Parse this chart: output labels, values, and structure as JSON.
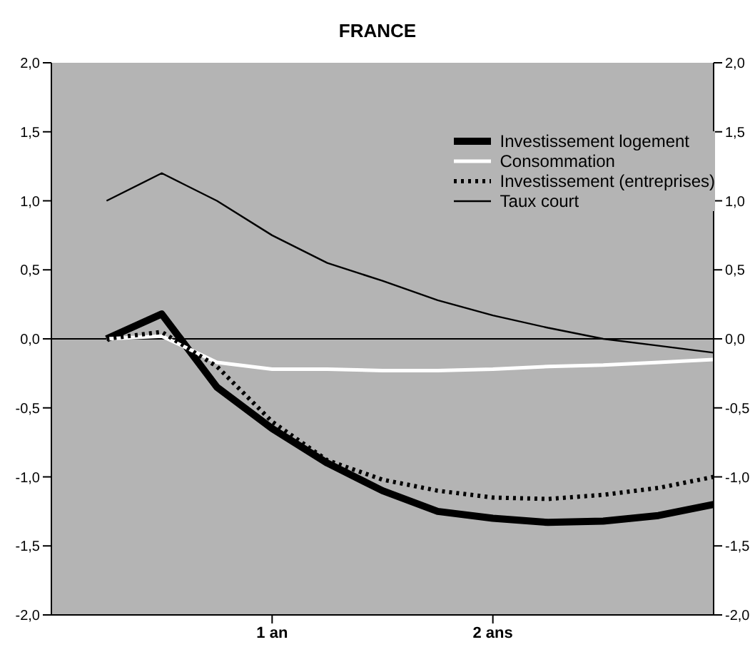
{
  "chart_data": {
    "type": "line",
    "title": "FRANCE",
    "categories": [
      null,
      null,
      null,
      null,
      "1 an",
      null,
      null,
      null,
      "2 ans",
      null,
      null,
      null,
      null
    ],
    "ylim": [
      -2,
      2
    ],
    "yticks": [
      {
        "value": -2,
        "label": "-2,0"
      },
      {
        "value": -1.5,
        "label": "-1,5"
      },
      {
        "value": -1,
        "label": "-1,0"
      },
      {
        "value": -0.5,
        "label": "-0,5"
      },
      {
        "value": 0,
        "label": "0,0"
      },
      {
        "value": 0.5,
        "label": "0,5"
      },
      {
        "value": 1,
        "label": "1,0"
      },
      {
        "value": 1.5,
        "label": "1,5"
      },
      {
        "value": 2,
        "label": "2,0"
      }
    ],
    "y2lim": [
      -2,
      2
    ],
    "y2ticks": [
      {
        "value": -2,
        "label": "-2,0"
      },
      {
        "value": -1.5,
        "label": "-1,5"
      },
      {
        "value": -1,
        "label": "-1,0"
      },
      {
        "value": -0.5,
        "label": "-0,5"
      },
      {
        "value": 0,
        "label": "0,0"
      },
      {
        "value": 0.5,
        "label": "0,5"
      },
      {
        "value": 1,
        "label": "1,0"
      },
      {
        "value": 1.5,
        "label": "1,5"
      },
      {
        "value": 2,
        "label": "2,0"
      }
    ],
    "series": [
      {
        "name": "Investissement logement",
        "color": "#000000",
        "line_style": "solid",
        "values": [
          null,
          0,
          0.18,
          -0.35,
          -0.65,
          -0.9,
          -1.1,
          -1.25,
          -1.3,
          -1.33,
          -1.32,
          -1.28,
          -1.2
        ]
      },
      {
        "name": "Consommation",
        "color": "#ffffff",
        "line_style": "solid",
        "values": [
          null,
          0,
          0.02,
          -0.17,
          -0.22,
          -0.22,
          -0.23,
          -0.23,
          -0.22,
          -0.2,
          -0.19,
          -0.17,
          -0.15
        ]
      },
      {
        "name": "Investissement (entreprises)",
        "color": "#000000",
        "line_style": "dotted",
        "values": [
          null,
          0,
          0.05,
          -0.2,
          -0.6,
          -0.88,
          -1.02,
          -1.1,
          -1.15,
          -1.16,
          -1.13,
          -1.08,
          -1.0
        ]
      },
      {
        "name": "Taux court",
        "color": "#000000",
        "line_style": "solid",
        "values": [
          null,
          1.0,
          1.2,
          1.0,
          0.75,
          0.55,
          0.42,
          0.28,
          0.17,
          0.08,
          0.0,
          -0.05,
          -0.1
        ]
      }
    ],
    "ref_lines": [
      {
        "axis": "y",
        "value": 0,
        "color": "#000000"
      }
    ],
    "legend": "top right",
    "marker": "none"
  }
}
